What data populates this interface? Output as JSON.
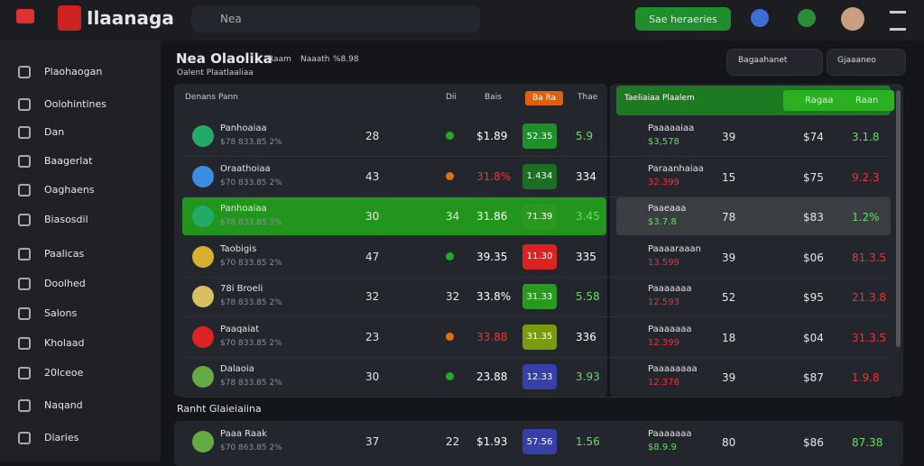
{
  "header": {
    "logo": "Ilaanaga",
    "search": "Nea",
    "button": "Sae heraeries"
  },
  "sidebar": {
    "items": [
      "Plaohaogan",
      "Oolohintines",
      "Dan",
      "Baagerlat",
      "Oaghaens",
      "Biasosdil",
      "Paalicas",
      "Doolhed",
      "Salons",
      "Kholaad",
      "20lceoe",
      "Naqand",
      "Dlaries"
    ]
  },
  "main": {
    "title": "Nea Olaolika",
    "meta": [
      "Raam",
      "Naaath",
      "%8.98"
    ],
    "subtitle": "Oalent Plaatlaaliaa",
    "dropdowns": [
      "Bagaahanet",
      "Gjaaaneo"
    ]
  },
  "left_table": {
    "headers": [
      "Denans Pann",
      "Dii",
      "Bais",
      "Ba Ra",
      "Thae"
    ],
    "rows": [
      {
        "name": "Panhoaiaa",
        "sub": "$78 833.85 2%",
        "count": "28",
        "price": "$1.89",
        "badge": "52.35",
        "change": "5.9"
      },
      {
        "name": "Oraathoiaa",
        "sub": "$70 833.85 2%",
        "count": "43",
        "price": "31.8%",
        "badge": "1.434",
        "change": "334"
      },
      {
        "name": "Panhoaiaa",
        "sub": "$78 833.85 3%",
        "count": "30",
        "extra": "34",
        "price": "31.86",
        "badge": "71.39",
        "change": "3.45"
      },
      {
        "name": "Taobigis",
        "sub": "$70 833.85 2%",
        "count": "47",
        "price": "39.35",
        "badge": "11.30",
        "change": "335"
      },
      {
        "name": "78i Broeli",
        "sub": "$78 833.85 2%",
        "count": "32",
        "extra": "32",
        "price": "33.8%",
        "badge": "31.33",
        "change": "5.58"
      },
      {
        "name": "Paaqaiat",
        "sub": "$70 833.85 2%",
        "count": "23",
        "price": "33.88",
        "badge": "31.35",
        "change": "336"
      },
      {
        "name": "Dalaoia",
        "sub": "$78 833.85 2%",
        "count": "30",
        "price": "23.88",
        "badge": "12.33",
        "change": "3.93"
      }
    ]
  },
  "right_table": {
    "title": "Taeliaiaa Plaalem",
    "buttons": [
      "Ragaa",
      "Raan"
    ],
    "rows": [
      {
        "name": "Paaaaaiaa",
        "amount": "$3,578",
        "qty": "39",
        "price": "$74",
        "change": "3.1.8"
      },
      {
        "name": "Paraanhaiaa",
        "amount": "32.399",
        "qty": "15",
        "price": "$75",
        "change": "9.2.3"
      },
      {
        "name": "Paaeaaa",
        "amount": "$3.7.8",
        "qty": "78",
        "price": "$83",
        "change": "1.2%"
      },
      {
        "name": "Paaaaraaan",
        "amount": "13.599",
        "qty": "39",
        "price": "$06",
        "change": "81.3.5"
      },
      {
        "name": "Paaaaaaa",
        "amount": "12.593",
        "qty": "52",
        "price": "$95",
        "change": "21.3.8"
      },
      {
        "name": "Paaaaaaa",
        "amount": "12.399",
        "qty": "18",
        "price": "$04",
        "change": "31.3.5"
      },
      {
        "name": "Paaaaaaaa",
        "amount": "12.376",
        "qty": "39",
        "price": "$87",
        "change": "1.9.8"
      }
    ]
  },
  "bottom": {
    "title": "Ranht Glaieiaiina",
    "left": {
      "name": "Paaa Raak",
      "sub": "$70 863.85 2%",
      "count": "37",
      "extra": "22",
      "price": "$1.93",
      "badge": "57.56",
      "change": "1.56"
    },
    "right": {
      "name": "Paaaaaaa",
      "amount": "$8.9.9",
      "qty": "80",
      "price": "$86",
      "change": "87.38"
    }
  }
}
